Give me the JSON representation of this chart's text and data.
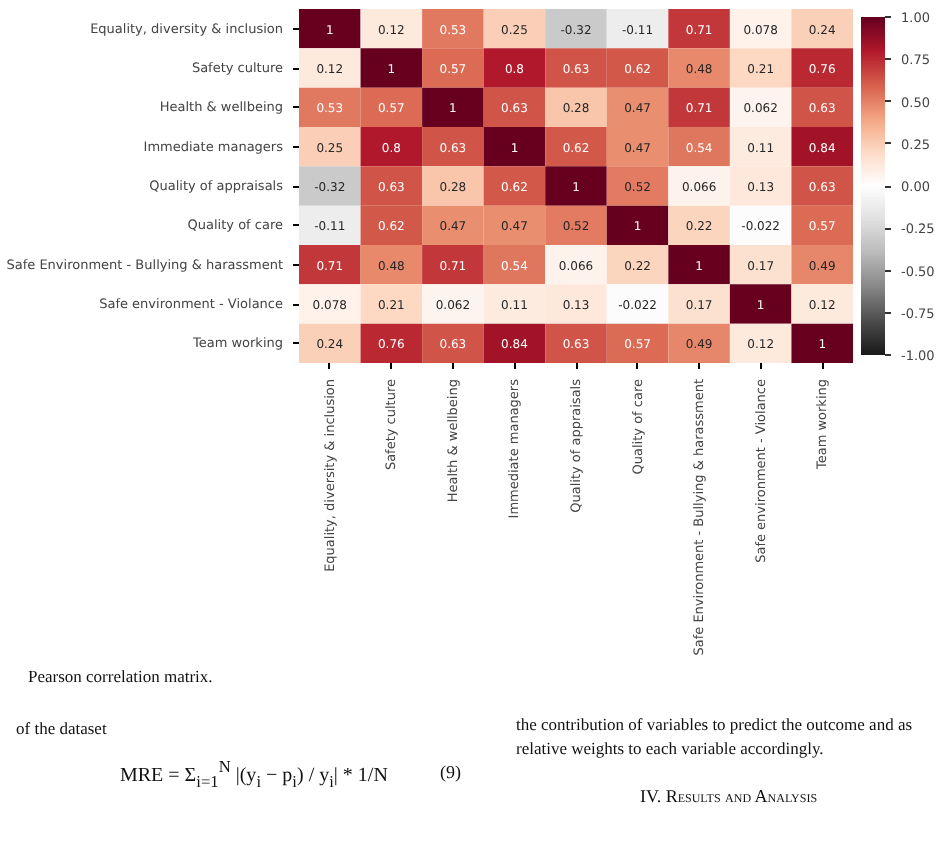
{
  "chart_data": {
    "type": "heatmap",
    "categories": [
      "Equality, diversity & inclusion",
      "Safety culture",
      "Health & wellbeing",
      "Immediate managers",
      "Quality of appraisals",
      "Quality of care",
      "Safe Environment - Bullying & harassment",
      "Safe environment - Violance",
      "Team working"
    ],
    "y_categories": [
      "Equality, diversity & inclusion",
      "Safety culture",
      "Health & wellbeing",
      "Immediate managers",
      "Quality of appraisals",
      "Quality of care",
      "Safe Environment - Bullying & harassment",
      "Safe environment - Violance",
      "Team working"
    ],
    "cells": [
      [
        1,
        0.12,
        0.53,
        0.25,
        -0.32,
        -0.11,
        0.71,
        0.078,
        0.24
      ],
      [
        0.12,
        1,
        0.57,
        0.8,
        0.63,
        0.62,
        0.48,
        0.21,
        0.76
      ],
      [
        0.53,
        0.57,
        1,
        0.63,
        0.28,
        0.47,
        0.71,
        0.062,
        0.63
      ],
      [
        0.25,
        0.8,
        0.63,
        1,
        0.62,
        0.47,
        0.54,
        0.11,
        0.84
      ],
      [
        -0.32,
        0.63,
        0.28,
        0.62,
        1,
        0.52,
        0.066,
        0.13,
        0.63
      ],
      [
        -0.11,
        0.62,
        0.47,
        0.47,
        0.52,
        1,
        0.22,
        -0.022,
        0.57
      ],
      [
        0.71,
        0.48,
        0.71,
        0.54,
        0.066,
        0.22,
        1,
        0.17,
        0.49
      ],
      [
        0.078,
        0.21,
        0.062,
        0.11,
        0.13,
        -0.022,
        0.17,
        1,
        0.12
      ],
      [
        0.24,
        0.76,
        0.63,
        0.84,
        0.63,
        0.57,
        0.49,
        0.12,
        1
      ]
    ],
    "data_labels": true,
    "clim": [
      -1,
      1
    ],
    "cticks": [
      {
        "value": -1,
        "label": "-1.00"
      },
      {
        "value": -0.75,
        "label": "-0.75"
      },
      {
        "value": -0.5,
        "label": "-0.50"
      },
      {
        "value": -0.25,
        "label": "-0.25"
      },
      {
        "value": 0,
        "label": "0.00"
      },
      {
        "value": 0.25,
        "label": "0.25"
      },
      {
        "value": 0.5,
        "label": "0.50"
      },
      {
        "value": 0.75,
        "label": "0.75"
      },
      {
        "value": 1,
        "label": "1.00"
      }
    ],
    "annotations": [
      "Pearson correlation matrix.",
      "of the dataset",
      "MRE = Σ$_{i=1}$$^{N}$ |(y$_{i}$ − p$_{i}$) / y$_{i}$| * 1/N",
      "(9)",
      "the contribution of variables to predict the outcome and as",
      "relative weights to each variable accordingly.",
      "IV. Results and Analysis"
    ]
  }
}
